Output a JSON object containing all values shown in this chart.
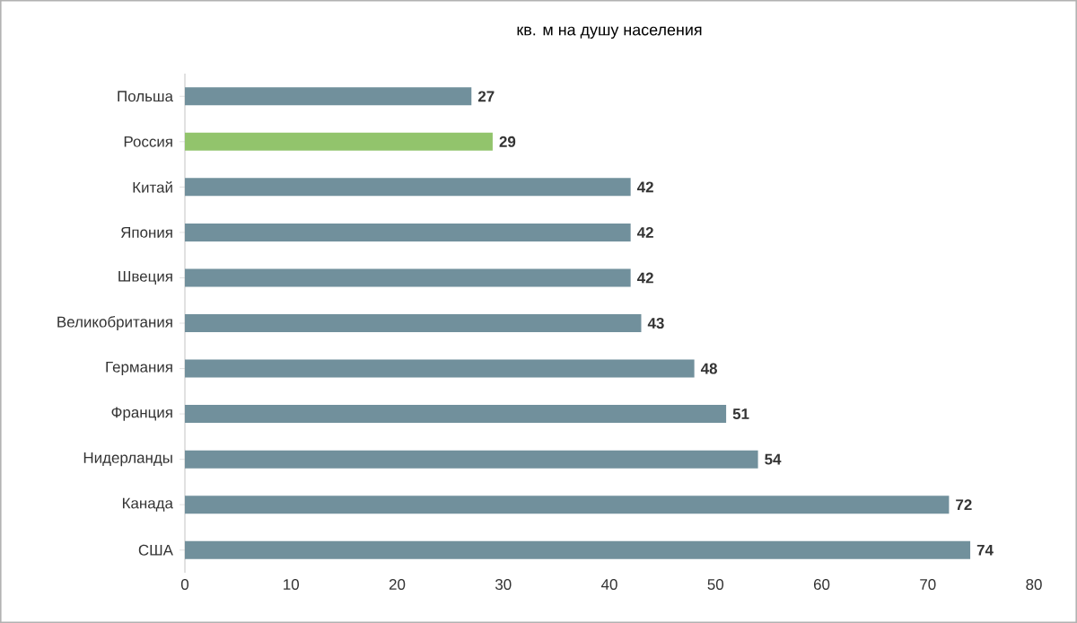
{
  "chart_data": {
    "type": "bar",
    "orientation": "horizontal",
    "title": "кв. м на душу населения",
    "categories": [
      "Польша",
      "Россия",
      "Китай",
      "Япония",
      "Швеция",
      "Великобритания",
      "Германия",
      "Франция",
      "Нидерланды",
      "Канада",
      "США"
    ],
    "values": [
      27,
      29,
      42,
      42,
      42,
      43,
      48,
      51,
      54,
      72,
      74
    ],
    "colors": [
      "#71909c",
      "#92c46c",
      "#71909c",
      "#71909c",
      "#71909c",
      "#71909c",
      "#71909c",
      "#71909c",
      "#71909c",
      "#71909c",
      "#71909c"
    ],
    "xlim": [
      0,
      80
    ],
    "xticks": [
      0,
      10,
      20,
      30,
      40,
      50,
      60,
      70,
      80
    ],
    "data_labels": true,
    "grid": false
  }
}
